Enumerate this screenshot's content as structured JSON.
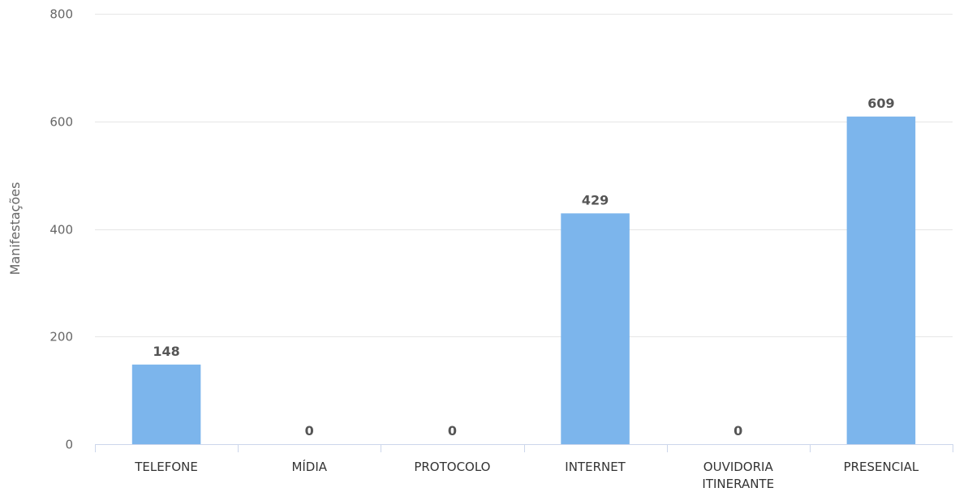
{
  "chart_data": {
    "type": "bar",
    "title": "",
    "xlabel": "",
    "ylabel": "Manifestações",
    "categories": [
      "TELEFONE",
      "MÍDIA",
      "PROTOCOLO",
      "INTERNET",
      "OUVIDORIA ITINERANTE",
      "PRESENCIAL"
    ],
    "category_lines": [
      [
        "TELEFONE"
      ],
      [
        "MÍDIA"
      ],
      [
        "PROTOCOLO"
      ],
      [
        "INTERNET"
      ],
      [
        "OUVIDORIA",
        "ITINERANTE"
      ],
      [
        "PRESENCIAL"
      ]
    ],
    "values": [
      148,
      0,
      0,
      429,
      0,
      609
    ],
    "data_labels": [
      "148",
      "0",
      "0",
      "429",
      "0",
      "609"
    ],
    "ylim": [
      0,
      800
    ],
    "yticks": [
      0,
      200,
      400,
      600,
      800
    ],
    "ytick_labels": [
      "0",
      "200",
      "400",
      "600",
      "800"
    ],
    "grid": true,
    "legend": "none",
    "bar_color": "#7cb5ec"
  }
}
